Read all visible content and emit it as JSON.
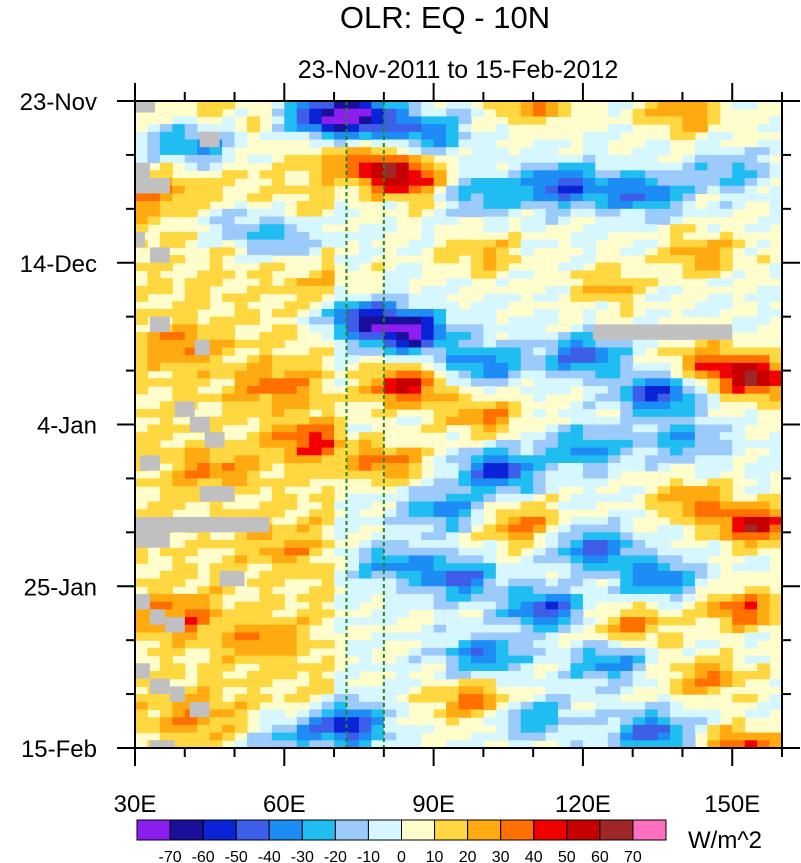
{
  "chart_data": {
    "type": "heatmap",
    "title": "OLR: EQ - 10N",
    "subtitle": "23-Nov-2011 to 15-Feb-2012",
    "x_range": [
      30,
      160
    ],
    "x_ticks": [
      {
        "value": 30,
        "label": "30E"
      },
      {
        "value": 60,
        "label": "60E"
      },
      {
        "value": 90,
        "label": "90E"
      },
      {
        "value": 120,
        "label": "120E"
      },
      {
        "value": 150,
        "label": "150E"
      }
    ],
    "x_minor_step": 10,
    "y_range_days": [
      0,
      84
    ],
    "y_ticks": [
      {
        "day": 0,
        "label": "23-Nov"
      },
      {
        "day": 21,
        "label": "14-Dec"
      },
      {
        "day": 42,
        "label": "4-Jan"
      },
      {
        "day": 63,
        "label": "25-Jan"
      },
      {
        "day": 84,
        "label": "15-Feb"
      }
    ],
    "y_minor_step_days": 7,
    "reference_lines_lon": [
      72.5,
      80
    ],
    "colorbar": {
      "units": "W/m^2",
      "levels": [
        "-70",
        "-60",
        "-50",
        "-40",
        "-30",
        "-20",
        "-10",
        "0",
        "10",
        "20",
        "30",
        "40",
        "50",
        "60",
        "70"
      ],
      "colors": [
        "#8c1ef0",
        "#1a0f9a",
        "#0a23d6",
        "#3d5ee8",
        "#1e8cf5",
        "#1fbdf2",
        "#9ccafa",
        "#d7f7ff",
        "#fffdcc",
        "#ffd740",
        "#ffaa10",
        "#ff7000",
        "#f20000",
        "#c60000",
        "#a12626",
        "#ff6fbf"
      ]
    },
    "anomaly_field": {
      "background": "#fffdcc",
      "features": [
        {
          "lon": 74,
          "day": 2,
          "value": -72
        },
        {
          "lon": 66,
          "day": 2,
          "value": -45
        },
        {
          "lon": 88,
          "day": 4,
          "value": -40
        },
        {
          "lon": 110,
          "day": 0.5,
          "value": 30
        },
        {
          "lon": 140,
          "day": 1.5,
          "value": 30
        },
        {
          "lon": 44,
          "day": 6,
          "value": -32
        },
        {
          "lon": 36,
          "day": 5,
          "value": -25
        },
        {
          "lon": 84,
          "day": 10,
          "value": 55
        },
        {
          "lon": 76,
          "day": 8,
          "value": 32
        },
        {
          "lon": 116,
          "day": 11,
          "value": -52
        },
        {
          "lon": 132,
          "day": 12,
          "value": -42
        },
        {
          "lon": 100,
          "day": 12,
          "value": -30
        },
        {
          "lon": 150,
          "day": 9,
          "value": -25
        },
        {
          "lon": 60,
          "day": 18,
          "value": -32
        },
        {
          "lon": 50,
          "day": 16,
          "value": -22
        },
        {
          "lon": 34,
          "day": 12,
          "value": 22
        },
        {
          "lon": 100,
          "day": 20,
          "value": 22
        },
        {
          "lon": 144,
          "day": 20,
          "value": 28
        },
        {
          "lon": 125,
          "day": 24,
          "value": 22
        },
        {
          "lon": 85,
          "day": 30,
          "value": -72
        },
        {
          "lon": 75,
          "day": 28,
          "value": -48
        },
        {
          "lon": 100,
          "day": 34,
          "value": -38
        },
        {
          "lon": 120,
          "day": 33,
          "value": -44
        },
        {
          "lon": 135,
          "day": 38,
          "value": -52
        },
        {
          "lon": 155,
          "day": 36,
          "value": 58
        },
        {
          "lon": 145,
          "day": 34,
          "value": 32
        },
        {
          "lon": 84,
          "day": 37,
          "value": 50
        },
        {
          "lon": 58,
          "day": 37,
          "value": 25
        },
        {
          "lon": 40,
          "day": 32,
          "value": 22
        },
        {
          "lon": 100,
          "day": 41,
          "value": 32
        },
        {
          "lon": 65,
          "day": 44,
          "value": 32
        },
        {
          "lon": 80,
          "day": 47,
          "value": 35
        },
        {
          "lon": 45,
          "day": 48,
          "value": 22
        },
        {
          "lon": 103,
          "day": 48,
          "value": -55
        },
        {
          "lon": 92,
          "day": 53,
          "value": -35
        },
        {
          "lon": 120,
          "day": 45,
          "value": -34
        },
        {
          "lon": 140,
          "day": 44,
          "value": -30
        },
        {
          "lon": 155,
          "day": 55,
          "value": 55
        },
        {
          "lon": 142,
          "day": 52,
          "value": 32
        },
        {
          "lon": 108,
          "day": 55,
          "value": 32
        },
        {
          "lon": 122,
          "day": 58,
          "value": -45
        },
        {
          "lon": 95,
          "day": 62,
          "value": -42
        },
        {
          "lon": 112,
          "day": 66,
          "value": -48
        },
        {
          "lon": 135,
          "day": 62,
          "value": -40
        },
        {
          "lon": 152,
          "day": 66,
          "value": 38
        },
        {
          "lon": 130,
          "day": 68,
          "value": 30
        },
        {
          "lon": 38,
          "day": 67,
          "value": 28
        },
        {
          "lon": 55,
          "day": 70,
          "value": 20
        },
        {
          "lon": 100,
          "day": 72,
          "value": -38
        },
        {
          "lon": 125,
          "day": 73,
          "value": -35
        },
        {
          "lon": 145,
          "day": 75,
          "value": 30
        },
        {
          "lon": 98,
          "day": 78,
          "value": 36
        },
        {
          "lon": 110,
          "day": 80,
          "value": -30
        },
        {
          "lon": 72,
          "day": 81,
          "value": -58
        },
        {
          "lon": 60,
          "day": 83,
          "value": -30
        },
        {
          "lon": 134,
          "day": 82,
          "value": -45
        },
        {
          "lon": 152,
          "day": 84,
          "value": 42
        },
        {
          "lon": 42,
          "day": 80,
          "value": 22
        },
        {
          "lon": 82,
          "day": 60,
          "value": -30
        },
        {
          "lon": 60,
          "day": 58,
          "value": 18
        },
        {
          "lon": 70,
          "day": 24,
          "value": 12
        }
      ]
    },
    "missing_data": [
      {
        "lon0": 30,
        "lon1": 34,
        "day0": 0,
        "day1": 1.5
      },
      {
        "lon0": 43,
        "lon1": 47,
        "day0": 4,
        "day1": 6
      },
      {
        "lon0": 30,
        "lon1": 33,
        "day0": 8,
        "day1": 12
      },
      {
        "lon0": 33,
        "lon1": 37,
        "day0": 10,
        "day1": 12
      },
      {
        "lon0": 30,
        "lon1": 32,
        "day0": 17,
        "day1": 19
      },
      {
        "lon0": 33,
        "lon1": 37,
        "day0": 19,
        "day1": 21
      },
      {
        "lon0": 33,
        "lon1": 37,
        "day0": 28,
        "day1": 30
      },
      {
        "lon0": 42,
        "lon1": 45,
        "day0": 31,
        "day1": 33
      },
      {
        "lon0": 38,
        "lon1": 42,
        "day0": 39,
        "day1": 41
      },
      {
        "lon0": 41,
        "lon1": 45,
        "day0": 41,
        "day1": 43
      },
      {
        "lon0": 44,
        "lon1": 48,
        "day0": 43,
        "day1": 45
      },
      {
        "lon0": 31,
        "lon1": 35,
        "day0": 46,
        "day1": 48
      },
      {
        "lon0": 43,
        "lon1": 50,
        "day0": 50,
        "day1": 52
      },
      {
        "lon0": 30,
        "lon1": 57,
        "day0": 54,
        "day1": 56
      },
      {
        "lon0": 30,
        "lon1": 37,
        "day0": 56,
        "day1": 58
      },
      {
        "lon0": 47,
        "lon1": 52,
        "day0": 61,
        "day1": 63
      },
      {
        "lon0": 30,
        "lon1": 33,
        "day0": 64,
        "day1": 66
      },
      {
        "lon0": 33,
        "lon1": 36,
        "day0": 66,
        "day1": 68
      },
      {
        "lon0": 36,
        "lon1": 40,
        "day0": 67,
        "day1": 69
      },
      {
        "lon0": 30,
        "lon1": 33,
        "day0": 73,
        "day1": 75
      },
      {
        "lon0": 33,
        "lon1": 37,
        "day0": 75,
        "day1": 77
      },
      {
        "lon0": 37,
        "lon1": 40,
        "day0": 76,
        "day1": 78
      },
      {
        "lon0": 41,
        "lon1": 45,
        "day0": 78,
        "day1": 80
      },
      {
        "lon0": 33,
        "lon1": 38,
        "day0": 83,
        "day1": 84
      },
      {
        "lon0": 122,
        "lon1": 150,
        "day0": 29,
        "day1": 31
      }
    ]
  }
}
